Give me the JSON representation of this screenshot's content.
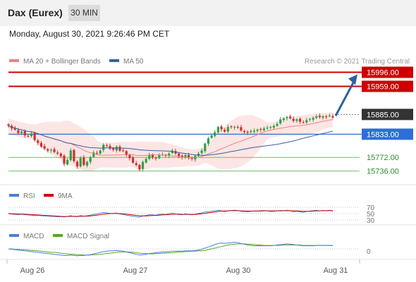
{
  "header": {
    "title": "Dax (Eurex)",
    "timeframe": "30 MIN"
  },
  "datetime": "Monday, August 30, 2021 9:26:46 PM CET",
  "colors": {
    "resistance": "#cc0000",
    "support": "#2d6fd6",
    "pivot": "#333333",
    "target": "#6cbf6c",
    "bull": "#2ea043",
    "bear": "#d0302b",
    "ma20": "#f08080",
    "ma50": "#3a5fa0",
    "band": "#fbdcdc",
    "arrow": "#2f5f9e",
    "rsi": "#4a7fd4",
    "rsi_ma": "#cc0000",
    "macd": "#4a7fd4",
    "macd_signal": "#55a630"
  },
  "legend": {
    "ma20": "MA 20 + Bollinger Bands",
    "ma50": "MA 50"
  },
  "watermark": "Research © 2021 Trading Central",
  "rsi_legend": {
    "rsi": "RSI",
    "ma": "9MA"
  },
  "macd_legend": {
    "macd": "MACD",
    "signal": "MACD Signal"
  },
  "chart_data": [
    {
      "type": "candlestick",
      "title": "Dax (Eurex)",
      "timeframe": "30 MIN",
      "x_labels": [
        "Aug 26",
        "Aug 27",
        "Aug 30",
        "Aug 31"
      ],
      "ylim": [
        15700,
        16010
      ],
      "levels": [
        {
          "label": "15996.00",
          "value": 15996,
          "kind": "resistance"
        },
        {
          "label": "15959.00",
          "value": 15959,
          "kind": "resistance"
        },
        {
          "label": "15885.00",
          "value": 15885,
          "kind": "pivot"
        },
        {
          "label": "15833.00",
          "value": 15833,
          "kind": "support"
        },
        {
          "label": "15772.00",
          "value": 15772,
          "kind": "target"
        },
        {
          "label": "15736.00",
          "value": 15736,
          "kind": "target"
        }
      ],
      "close": [
        15855,
        15848,
        15845,
        15836,
        15840,
        15830,
        15828,
        15835,
        15818,
        15810,
        15800,
        15795,
        15790,
        15792,
        15786,
        15782,
        15775,
        15755,
        15765,
        15790,
        15762,
        15748,
        15770,
        15752,
        15760,
        15772,
        15785,
        15782,
        15790,
        15805,
        15802,
        15795,
        15792,
        15800,
        15789,
        15790,
        15778,
        15770,
        15758,
        15752,
        15740,
        15760,
        15768,
        15778,
        15772,
        15770,
        15778,
        15780,
        15776,
        15782,
        15790,
        15782,
        15775,
        15772,
        15778,
        15770,
        15768,
        15776,
        15782,
        15790,
        15808,
        15822,
        15830,
        15838,
        15852,
        15846,
        15840,
        15852,
        15852,
        15852,
        15850,
        15843,
        15839,
        15837,
        15841,
        15842,
        15845,
        15845,
        15848,
        15850,
        15852,
        15855,
        15860,
        15872,
        15875,
        15878,
        15875,
        15868,
        15872,
        15866,
        15864,
        15870,
        15873,
        15876,
        15880,
        15878,
        15880,
        15879,
        15882,
        15877
      ],
      "bollinger": {
        "ma_period": 20,
        "shown": true
      },
      "ma50": {
        "shown": true
      },
      "projection_arrow": {
        "from": 15885,
        "to": 15996
      }
    },
    {
      "type": "line",
      "title": "RSI",
      "levels": [
        70,
        50,
        30
      ],
      "series": [
        {
          "name": "RSI",
          "values": [
            45,
            44,
            42,
            41,
            43,
            40,
            39,
            38,
            36,
            37,
            35,
            34,
            33,
            32,
            31,
            30,
            30,
            29,
            32,
            35,
            31,
            30,
            36,
            33,
            35,
            38,
            42,
            44,
            48,
            52,
            50,
            47,
            46,
            49,
            44,
            42,
            38,
            35,
            33,
            30,
            28,
            34,
            37,
            40,
            39,
            38,
            42,
            44,
            41,
            46,
            48,
            44,
            41,
            40,
            45,
            41,
            40,
            44,
            47,
            50,
            54,
            56,
            58,
            60,
            63,
            60,
            56,
            61,
            62,
            64,
            62,
            58,
            56,
            55,
            58,
            59,
            60,
            61,
            62,
            60,
            57,
            58,
            60,
            62,
            61,
            63,
            60,
            56,
            58,
            55,
            53,
            57,
            59,
            61,
            63,
            60,
            62,
            61,
            63,
            58
          ]
        },
        {
          "name": "9MA",
          "values": [
            46,
            45,
            45,
            44,
            44,
            43,
            42,
            41,
            40,
            39,
            38,
            37,
            36,
            35,
            34,
            33,
            32,
            31,
            31,
            32,
            32,
            32,
            32,
            33,
            33,
            34,
            36,
            38,
            40,
            43,
            45,
            46,
            47,
            47,
            46,
            45,
            43,
            41,
            39,
            37,
            35,
            34,
            34,
            35,
            36,
            37,
            38,
            39,
            40,
            41,
            42,
            43,
            43,
            42,
            42,
            42,
            42,
            42,
            43,
            45,
            47,
            50,
            52,
            54,
            57,
            59,
            60,
            60,
            61,
            61,
            61,
            60,
            60,
            59,
            59,
            59,
            59,
            59,
            60,
            60,
            60,
            60,
            60,
            60,
            61,
            61,
            61,
            60,
            60,
            59,
            58,
            58,
            58,
            59,
            60,
            60,
            61,
            61,
            62,
            61
          ]
        }
      ]
    },
    {
      "type": "line",
      "title": "MACD",
      "levels": [
        0
      ],
      "series": [
        {
          "name": "MACD",
          "values": [
            0,
            -1,
            -2,
            -3,
            -4,
            -5,
            -6,
            -7,
            -8,
            -9,
            -10,
            -11,
            -12,
            -13,
            -14,
            -15,
            -16,
            -17,
            -17,
            -16,
            -17,
            -18,
            -17,
            -17,
            -16,
            -15,
            -13,
            -11,
            -9,
            -7,
            -6,
            -5,
            -5,
            -4,
            -5,
            -6,
            -8,
            -10,
            -12,
            -14,
            -16,
            -15,
            -14,
            -12,
            -11,
            -10,
            -9,
            -8,
            -8,
            -7,
            -6,
            -6,
            -6,
            -6,
            -5,
            -5,
            -5,
            -4,
            -3,
            -1,
            2,
            5,
            8,
            11,
            14,
            15,
            14,
            15,
            16,
            17,
            16,
            14,
            12,
            10,
            9,
            8,
            8,
            8,
            8,
            8,
            8,
            9,
            10,
            11,
            12,
            13,
            12,
            11,
            10,
            9,
            8,
            8,
            8,
            8,
            9,
            9,
            9,
            9,
            9,
            8
          ]
        },
        {
          "name": "MACD Signal",
          "values": [
            0,
            0,
            -1,
            -1,
            -2,
            -2,
            -3,
            -4,
            -4,
            -5,
            -6,
            -7,
            -8,
            -9,
            -9,
            -10,
            -11,
            -12,
            -13,
            -14,
            -14,
            -15,
            -15,
            -16,
            -16,
            -16,
            -15,
            -15,
            -14,
            -13,
            -12,
            -11,
            -10,
            -9,
            -8,
            -8,
            -8,
            -8,
            -9,
            -10,
            -11,
            -12,
            -12,
            -13,
            -13,
            -12,
            -12,
            -11,
            -11,
            -10,
            -10,
            -9,
            -8,
            -8,
            -7,
            -7,
            -6,
            -6,
            -5,
            -5,
            -4,
            -2,
            0,
            2,
            4,
            6,
            8,
            10,
            11,
            12,
            13,
            13,
            13,
            12,
            12,
            11,
            10,
            10,
            9,
            9,
            9,
            9,
            9,
            9,
            10,
            10,
            10,
            10,
            10,
            10,
            9,
            9,
            9,
            9,
            9,
            9,
            9,
            9,
            9,
            9
          ]
        }
      ]
    }
  ]
}
